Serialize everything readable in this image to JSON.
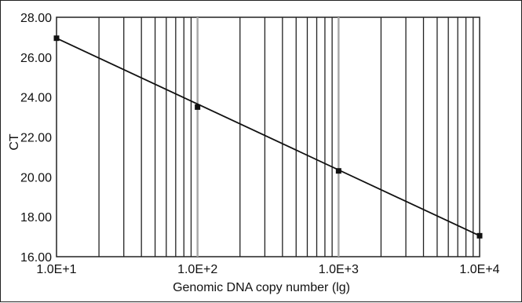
{
  "chart_data": {
    "type": "scatter",
    "title": "",
    "xlabel": "Genomic DNA copy number (lg)",
    "ylabel": "CT",
    "x_scale": "log",
    "xlim": [
      10,
      10000
    ],
    "ylim": [
      16,
      28
    ],
    "grid": {
      "x_minor_log": true,
      "y": false
    },
    "x_tick_labels": [
      "1.0E+1",
      "1.0E+2",
      "1.0E+3",
      "1.0E+4"
    ],
    "x_ticks": [
      10,
      100,
      1000,
      10000
    ],
    "y_tick_labels": [
      "16.00",
      "18.00",
      "20.00",
      "22.00",
      "24.00",
      "26.00",
      "28.00"
    ],
    "y_ticks": [
      16,
      18,
      20,
      22,
      24,
      26,
      28
    ],
    "series": [
      {
        "points": [
          {
            "x": 10,
            "y": 26.95
          },
          {
            "x": 100,
            "y": 23.5
          },
          {
            "x": 1000,
            "y": 20.3
          },
          {
            "x": 10000,
            "y": 17.05
          }
        ],
        "fit_line": {
          "x": [
            10,
            10000
          ],
          "y": [
            26.95,
            17.05
          ]
        },
        "color": "#111111"
      }
    ]
  }
}
